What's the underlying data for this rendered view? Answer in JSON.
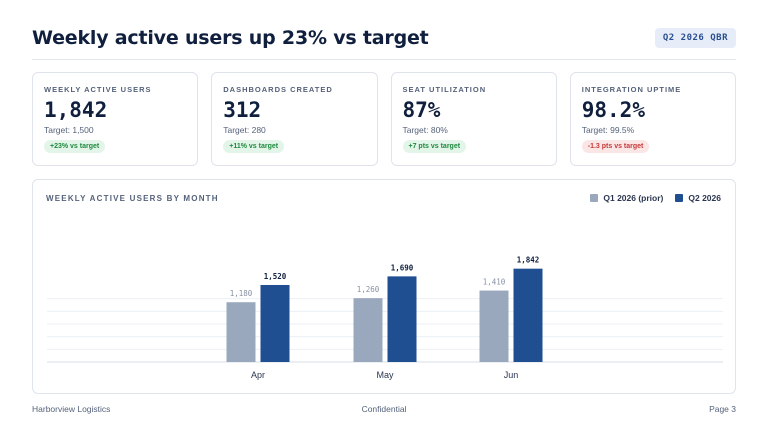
{
  "header": {
    "title": "Weekly active users up 23% vs target",
    "badge": "Q2 2026 QBR"
  },
  "kpis": [
    {
      "label": "WEEKLY ACTIVE USERS",
      "value": "1,842",
      "target": "Target: 1,500",
      "delta": "+23% vs target",
      "status": "good"
    },
    {
      "label": "DASHBOARDS CREATED",
      "value": "312",
      "target": "Target: 280",
      "delta": "+11% vs target",
      "status": "good"
    },
    {
      "label": "SEAT UTILIZATION",
      "value": "87%",
      "target": "Target: 80%",
      "delta": "+7 pts vs target",
      "status": "good"
    },
    {
      "label": "INTEGRATION UPTIME",
      "value": "98.2%",
      "target": "Target: 99.5%",
      "delta": "-1.3 pts vs target",
      "status": "bad"
    }
  ],
  "colors": {
    "prior": "#9aa8bd",
    "current": "#1f4e91"
  },
  "chart_data": {
    "type": "bar",
    "title": "WEEKLY ACTIVE USERS BY MONTH",
    "categories": [
      "Apr",
      "May",
      "Jun"
    ],
    "series": [
      {
        "name": "Q1 2026 (prior)",
        "values": [
          1180,
          1260,
          1410
        ],
        "labels": [
          "1,180",
          "1,260",
          "1,410"
        ]
      },
      {
        "name": "Q2 2026",
        "values": [
          1520,
          1690,
          1842
        ],
        "labels": [
          "1,520",
          "1,690",
          "1,842"
        ]
      }
    ],
    "ylim": [
      0,
      3000
    ],
    "grid": true,
    "legend": "top-right"
  },
  "footer": {
    "left": "Harborview Logistics",
    "center": "Confidential",
    "right": "Page 3"
  }
}
